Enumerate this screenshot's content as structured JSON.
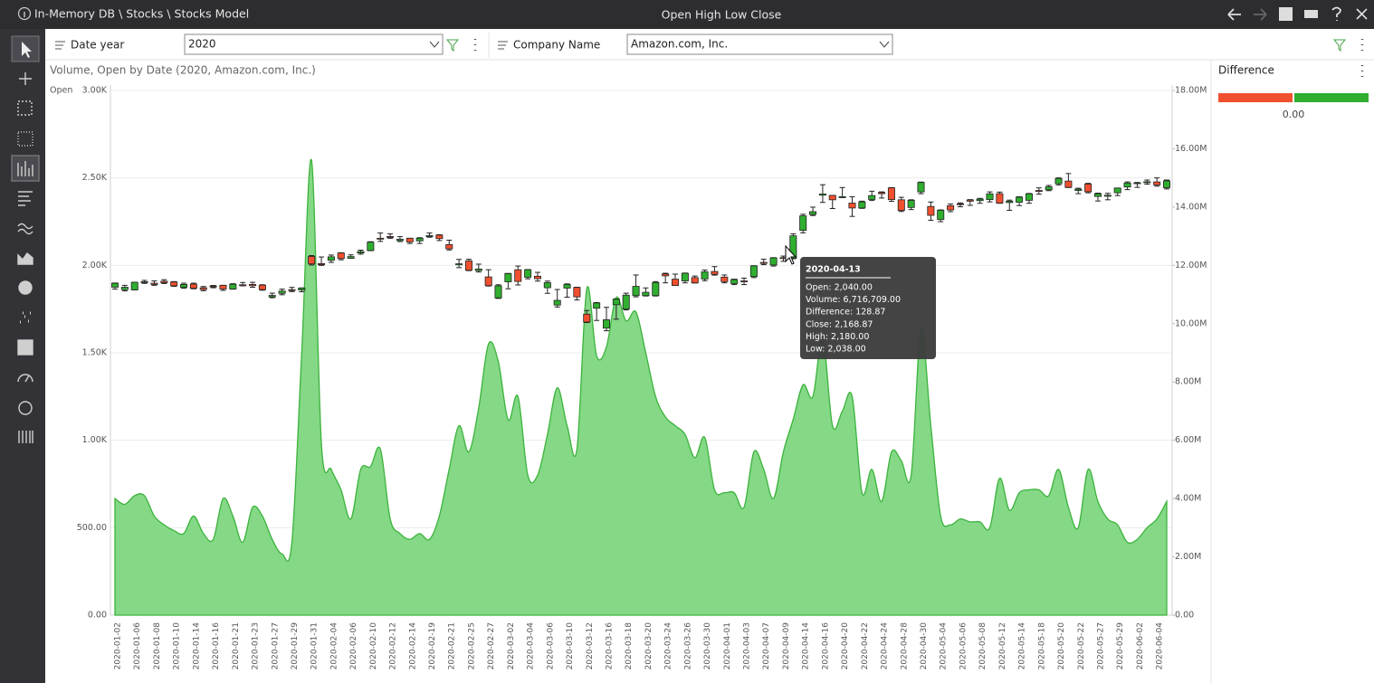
{
  "header": {
    "breadcrumb": "In-Memory DB \\ Stocks \\ Stocks Model",
    "title": "Open High Low Close"
  },
  "filters": [
    {
      "label": "Date year",
      "value": "2020"
    },
    {
      "label": "Company Name",
      "value": "Amazon.com, Inc."
    }
  ],
  "chart_data": {
    "type": "candlestick",
    "title": "Volume, Open by Date (2020, Amazon.com, Inc.)",
    "y_label": "Open",
    "up_color": "#2fae2f",
    "down_color": "#f0502f",
    "categories": [
      "2020-01-02",
      null,
      "2020-01-06",
      null,
      "2020-01-08",
      null,
      "2020-01-10",
      null,
      "2020-01-14",
      null,
      "2020-01-16",
      null,
      "2020-01-21",
      null,
      "2020-01-23",
      null,
      "2020-01-27",
      null,
      "2020-01-29",
      null,
      "2020-01-31",
      null,
      "2020-02-04",
      null,
      "2020-02-06",
      null,
      "2020-02-10",
      null,
      "2020-02-12",
      null,
      "2020-02-14",
      null,
      "2020-02-19",
      null,
      "2020-02-21",
      null,
      "2020-02-25",
      null,
      "2020-02-27",
      null,
      "2020-03-02",
      null,
      "2020-03-04",
      null,
      "2020-03-06",
      null,
      "2020-03-10",
      null,
      "2020-03-12",
      null,
      "2020-03-16",
      null,
      "2020-03-18",
      null,
      "2020-03-20",
      null,
      "2020-03-24",
      null,
      "2020-03-26",
      null,
      "2020-03-30",
      null,
      "2020-04-01",
      null,
      "2020-04-03",
      null,
      "2020-04-07",
      null,
      "2020-04-09",
      null,
      "2020-04-14",
      null,
      "2020-04-16",
      null,
      "2020-04-20",
      null,
      "2020-04-22",
      null,
      "2020-04-24",
      null,
      "2020-04-28",
      null,
      "2020-04-30",
      null,
      "2020-05-04",
      null,
      "2020-05-06",
      null,
      "2020-05-08",
      null,
      "2020-05-12",
      null,
      "2020-05-14",
      null,
      "2020-05-18",
      null,
      "2020-05-20",
      null,
      "2020-05-22",
      null,
      "2020-05-27",
      null,
      "2020-05-29",
      null,
      "2020-06-02",
      null,
      "2020-06-04",
      null
    ],
    "open": [
      1875,
      1861,
      1860,
      1904,
      1898,
      1909,
      1905,
      1874,
      1893,
      1872,
      1882,
      1886,
      1865,
      1889,
      1891,
      1887,
      1820,
      1840,
      1861,
      1859,
      2051,
      2010,
      2029,
      2071,
      2041,
      2071,
      2085,
      2155,
      2165,
      2142,
      2155,
      2140,
      2167,
      2173,
      2119,
      2003,
      2026,
      1970,
      1934,
      1814,
      1906,
      1975,
      1932,
      1938,
      1872,
      1773,
      1870,
      1874,
      1721,
      1755,
      1641,
      1775,
      1750,
      1827,
      1827,
      1827,
      1951,
      1921,
      1911,
      1930,
      1922,
      1965,
      1933,
      1896,
      1911,
      1936,
      2017,
      2002,
      2044,
      2040,
      2200,
      2291,
      2401,
      2400,
      2390,
      2356,
      2328,
      2377,
      2417,
      2443,
      2375,
      2331,
      2420,
      2337,
      2262,
      2341,
      2352,
      2374,
      2370,
      2376,
      2410,
      2359,
      2361,
      2372,
      2428,
      2432,
      2467,
      2482,
      2428,
      2465,
      2394,
      2395,
      2415,
      2448,
      2467,
      2478,
      2477,
      2444
    ],
    "high": [
      1899,
      1886,
      1903,
      1914,
      1911,
      1918,
      1907,
      1898,
      1898,
      1879,
      1885,
      1886,
      1895,
      1902,
      1903,
      1889,
      1841,
      1864,
      1874,
      1871,
      2056,
      2048,
      2059,
      2072,
      2060,
      2087,
      2135,
      2185,
      2180,
      2164,
      2155,
      2158,
      2185,
      2175,
      2144,
      2034,
      2035,
      2007,
      1975,
      1889,
      1954,
      1996,
      1976,
      1960,
      1910,
      1862,
      1894,
      1875,
      1742,
      1787,
      1760,
      1808,
      1841,
      1945,
      1871,
      1907,
      1955,
      1950,
      1956,
      1939,
      1973,
      1993,
      1945,
      1921,
      1927,
      1998,
      2035,
      2044,
      2053,
      2180,
      2292,
      2333,
      2461,
      2400,
      2445,
      2392,
      2367,
      2424,
      2420,
      2444,
      2389,
      2375,
      2476,
      2362,
      2317,
      2351,
      2357,
      2376,
      2383,
      2420,
      2419,
      2373,
      2392,
      2411,
      2443,
      2457,
      2500,
      2525,
      2441,
      2469,
      2413,
      2412,
      2442,
      2477,
      2474,
      2488,
      2500,
      2488
    ],
    "low": [
      1864,
      1854,
      1860,
      1897,
      1886,
      1896,
      1880,
      1869,
      1866,
      1855,
      1872,
      1857,
      1864,
      1883,
      1875,
      1858,
      1815,
      1832,
      1850,
      1849,
      2002,
      2000,
      2017,
      2032,
      2041,
      2064,
      2084,
      2137,
      2155,
      2136,
      2125,
      2125,
      2161,
      2142,
      2088,
      1987,
      1970,
      1962,
      1882,
      1811,
      1866,
      1888,
      1923,
      1910,
      1840,
      1762,
      1818,
      1802,
      1673,
      1685,
      1626,
      1692,
      1745,
      1820,
      1825,
      1825,
      1900,
      1885,
      1900,
      1899,
      1912,
      1944,
      1900,
      1890,
      1890,
      1930,
      2004,
      1996,
      2023,
      2038,
      2186,
      2285,
      2360,
      2325,
      2388,
      2280,
      2326,
      2371,
      2385,
      2366,
      2308,
      2319,
      2410,
      2258,
      2250,
      2307,
      2335,
      2343,
      2355,
      2363,
      2355,
      2315,
      2342,
      2355,
      2407,
      2427,
      2460,
      2445,
      2410,
      2415,
      2368,
      2375,
      2399,
      2433,
      2446,
      2464,
      2453,
      2437
    ],
    "close": [
      1898,
      1875,
      1903,
      1906,
      1891,
      1901,
      1883,
      1891,
      1869,
      1862,
      1877,
      1865,
      1892,
      1887,
      1884,
      1861,
      1828,
      1853,
      1858,
      1870,
      2008,
      2004,
      2049,
      2039,
      2050,
      2079,
      2133,
      2150,
      2160,
      2149,
      2134,
      2155,
      2170,
      2153,
      2095,
      2009,
      1972,
      1979,
      1884,
      1883,
      1953,
      1908,
      1975,
      1924,
      1901,
      1800,
      1891,
      1820,
      1676,
      1785,
      1689,
      1807,
      1830,
      1880,
      1846,
      1902,
      1940,
      1885,
      1955,
      1900,
      1963,
      1949,
      1907,
      1919,
      1906,
      1997,
      2011,
      2043,
      2042,
      2168.87,
      2283,
      2307,
      2408,
      2375,
      2393,
      2328,
      2363,
      2399,
      2410,
      2376,
      2314,
      2372,
      2474,
      2286,
      2315,
      2317,
      2351,
      2367,
      2379,
      2409,
      2356,
      2367,
      2390,
      2409,
      2426,
      2449,
      2497,
      2446,
      2436,
      2421,
      2410,
      2401,
      2442,
      2471,
      2472,
      2478,
      2460,
      2483
    ],
    "volume": {
      "type": "area",
      "axis": "y2",
      "color": "#7dd67f",
      "line_color": "#3cb33c",
      "values": [
        4000000,
        3800000,
        4100000,
        4100000,
        3400000,
        3100000,
        2900000,
        2800000,
        3400000,
        2800000,
        2600000,
        4000000,
        3400000,
        2500000,
        3700000,
        3400000,
        2600000,
        2100000,
        2500000,
        9000000,
        15600000,
        5900000,
        5000000,
        4300000,
        3300000,
        5000000,
        5100000,
        5700000,
        3300000,
        2800000,
        2600000,
        2800000,
        2600000,
        3400000,
        5000000,
        6500000,
        5600000,
        7100000,
        9300000,
        8700000,
        6700000,
        7500000,
        4800000,
        4800000,
        6200000,
        7800000,
        6500000,
        5700000,
        11200000,
        8900000,
        9200000,
        10900000,
        10100000,
        10400000,
        9000000,
        7500000,
        6800000,
        6500000,
        6200000,
        5400000,
        6100000,
        4300000,
        4200000,
        4200000,
        3700000,
        5600000,
        5000000,
        4000000,
        5600000,
        6716709,
        7900000,
        7500000,
        9500000,
        6500000,
        7000000,
        7500000,
        4200000,
        5000000,
        3900000,
        5600000,
        5300000,
        4800000,
        9800000,
        6500000,
        3400000,
        3100000,
        3300000,
        3200000,
        3200000,
        3000000,
        4700000,
        3600000,
        4200000,
        4300000,
        4300000,
        4100000,
        5000000,
        3700000,
        3000000,
        5000000,
        3900000,
        3300000,
        3100000,
        2500000,
        2600000,
        3000000,
        3300000,
        3900000
      ]
    },
    "ylim": [
      0,
      3000
    ],
    "yticks": [
      {
        "value": 0,
        "label": "0.00"
      },
      {
        "value": 500,
        "label": "500.00"
      },
      {
        "value": 1000,
        "label": "1.00K"
      },
      {
        "value": 1500,
        "label": "1.50K"
      },
      {
        "value": 2000,
        "label": "2.00K"
      },
      {
        "value": 2500,
        "label": "2.50K"
      },
      {
        "value": 3000,
        "label": "3.00K"
      }
    ],
    "y2lim": [
      0,
      18000000
    ],
    "y2ticks": [
      {
        "value": 0,
        "label": "0.00"
      },
      {
        "value": 2000000,
        "label": "2.00M"
      },
      {
        "value": 4000000,
        "label": "4.00M"
      },
      {
        "value": 6000000,
        "label": "6.00M"
      },
      {
        "value": 8000000,
        "label": "8.00M"
      },
      {
        "value": 10000000,
        "label": "10.00M"
      },
      {
        "value": 12000000,
        "label": "12.00M"
      },
      {
        "value": 14000000,
        "label": "14.00M"
      },
      {
        "value": 16000000,
        "label": "16.00M"
      },
      {
        "value": 18000000,
        "label": "18.00M"
      }
    ],
    "grid": true
  },
  "tooltip": {
    "title": "2020-04-13",
    "lines": [
      "Open: 2,040.00",
      "Volume: 6,716,709.00",
      "Difference: 128.87",
      "Close: 2,168.87",
      "High: 2,180.00",
      "Low: 2,038.00"
    ]
  },
  "side_panel": {
    "title": "Difference",
    "value_label": "0.00"
  }
}
